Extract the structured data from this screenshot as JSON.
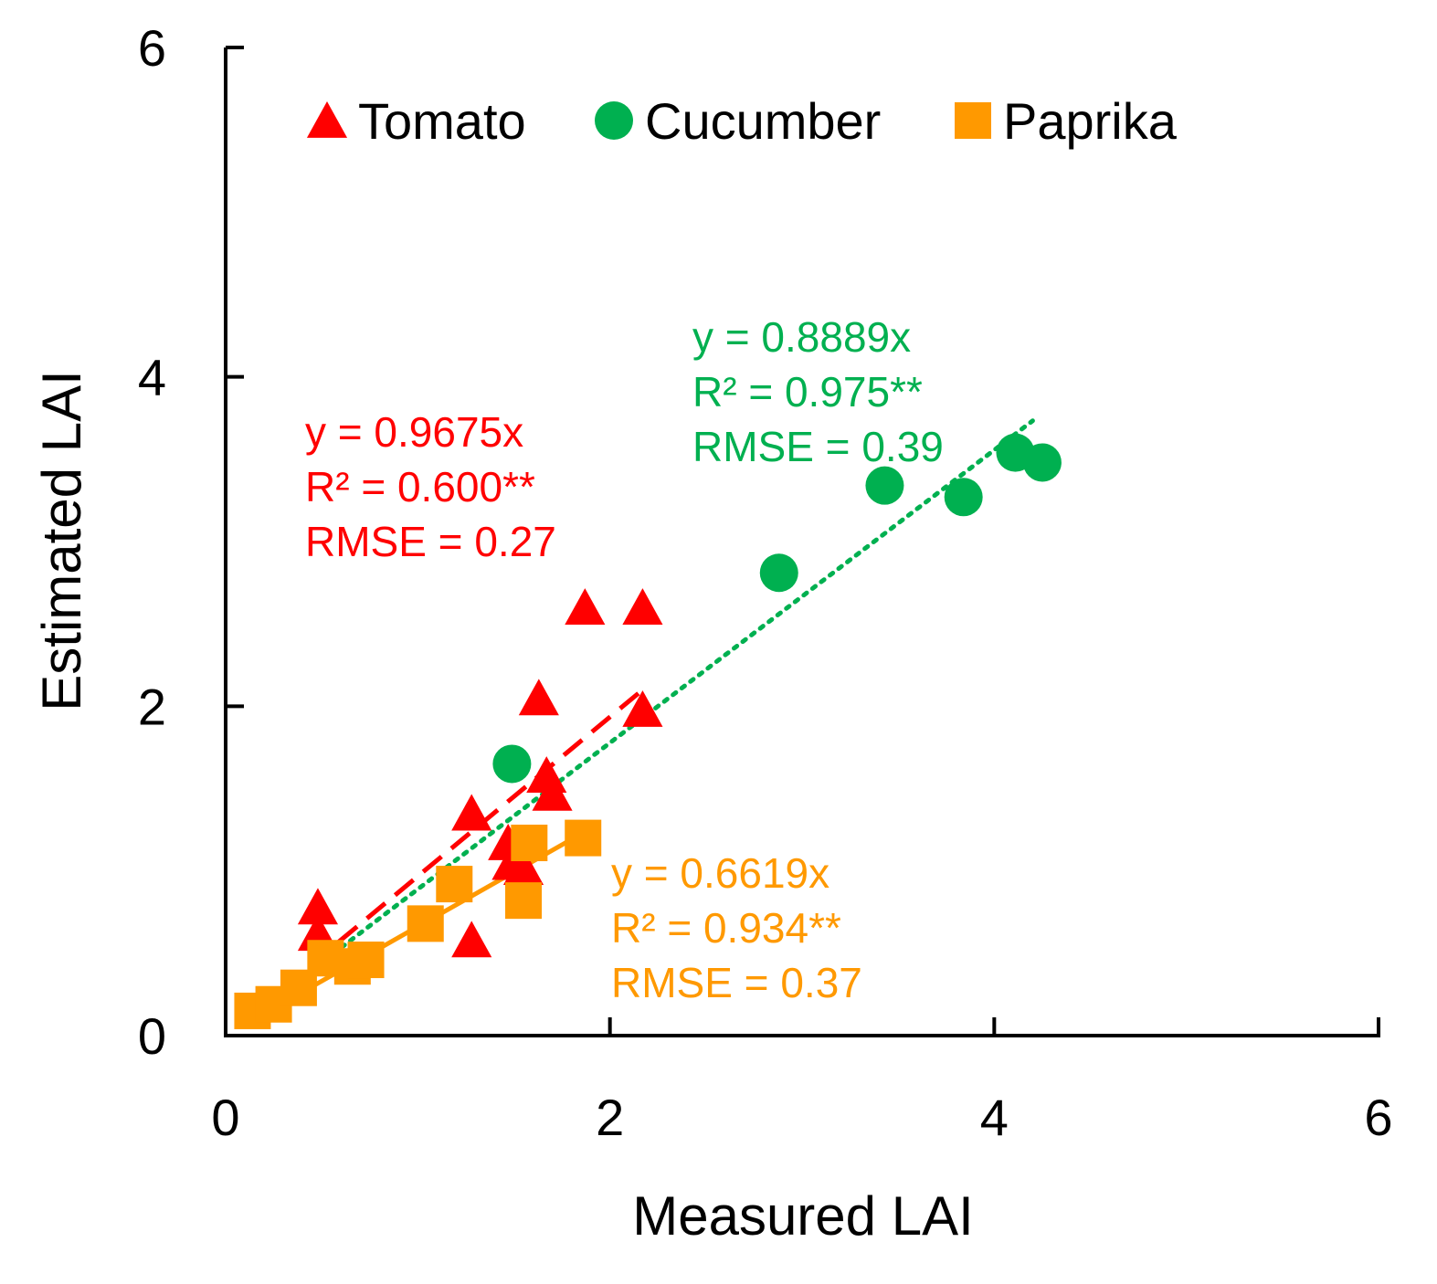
{
  "chart_data": {
    "type": "scatter",
    "title": "",
    "xlabel": "Measured LAI",
    "ylabel": "Estimated LAI",
    "xlim": [
      0,
      6
    ],
    "ylim": [
      0,
      6
    ],
    "xticks": [
      "0",
      "2",
      "4",
      "6"
    ],
    "yticks": [
      "0",
      "2",
      "4",
      "6"
    ],
    "legend": {
      "placement": "top"
    },
    "series": [
      {
        "name": "Tomato",
        "marker": "triangle",
        "color": "#ff0000",
        "line_style": "dashed",
        "fit_slope": 0.9675,
        "fit_x_range": [
          0.15,
          2.15
        ],
        "annotation": [
          "y = 0.9675x",
          "R² = 0.600**",
          "RMSE = 0.27"
        ],
        "points": [
          [
            0.48,
            0.78
          ],
          [
            0.48,
            0.62
          ],
          [
            1.28,
            1.35
          ],
          [
            1.28,
            0.58
          ],
          [
            1.47,
            1.17
          ],
          [
            1.49,
            1.05
          ],
          [
            1.55,
            1.02
          ],
          [
            1.63,
            2.05
          ],
          [
            1.67,
            1.58
          ],
          [
            1.7,
            1.47
          ],
          [
            1.87,
            2.6
          ],
          [
            2.17,
            2.6
          ],
          [
            2.17,
            1.98
          ]
        ]
      },
      {
        "name": "Cucumber",
        "marker": "circle",
        "color": "#00b050",
        "line_style": "dotted",
        "fit_slope": 0.8889,
        "fit_x_range": [
          0.15,
          4.2
        ],
        "annotation": [
          "y = 0.8889x",
          "R² = 0.975**",
          "RMSE = 0.39"
        ],
        "points": [
          [
            1.49,
            1.65
          ],
          [
            2.88,
            2.81
          ],
          [
            3.43,
            3.34
          ],
          [
            3.84,
            3.27
          ],
          [
            4.11,
            3.54
          ],
          [
            4.25,
            3.48
          ]
        ]
      },
      {
        "name": "Paprika",
        "marker": "square",
        "color": "#ff9900",
        "line_style": "solid",
        "fit_slope": 0.6619,
        "fit_x_range": [
          0.15,
          1.85
        ],
        "annotation": [
          "y = 0.6619x",
          "R² = 0.934**",
          "RMSE = 0.37"
        ],
        "points": [
          [
            0.14,
            0.15
          ],
          [
            0.25,
            0.19
          ],
          [
            0.38,
            0.29
          ],
          [
            0.52,
            0.47
          ],
          [
            0.66,
            0.42
          ],
          [
            0.73,
            0.46
          ],
          [
            1.04,
            0.68
          ],
          [
            1.19,
            0.92
          ],
          [
            1.55,
            0.82
          ],
          [
            1.58,
            1.17
          ],
          [
            1.86,
            1.2
          ]
        ]
      }
    ]
  }
}
